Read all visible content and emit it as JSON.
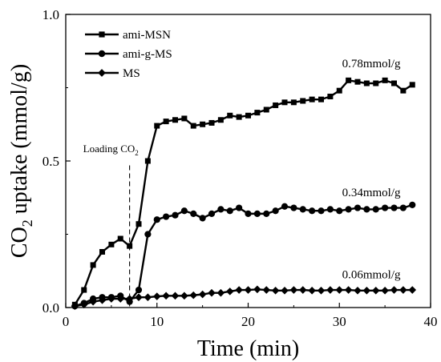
{
  "chart_data": {
    "type": "line",
    "title": "",
    "xlabel": "Time (min)",
    "ylabel_prefix": "CO",
    "ylabel_sub": "2",
    "ylabel_suffix": " uptake (mmol/g)",
    "xlim": [
      0,
      40
    ],
    "ylim": [
      0,
      1.0
    ],
    "x_ticks": [
      0,
      10,
      20,
      30,
      40
    ],
    "x_tick_labels": [
      "0",
      "10",
      "20",
      "30",
      "40"
    ],
    "y_ticks": [
      0,
      0.5,
      1.0
    ],
    "y_tick_labels": [
      "0.0",
      "0.5",
      "1.0"
    ],
    "grid": false,
    "legend_position": "top-left",
    "series": [
      {
        "name": "ami-MSN",
        "marker": "square",
        "x": [
          1,
          2,
          3,
          4,
          5,
          6,
          7,
          8,
          9,
          10,
          11,
          12,
          13,
          14,
          15,
          16,
          17,
          18,
          19,
          20,
          21,
          22,
          23,
          24,
          25,
          26,
          27,
          28,
          29,
          30,
          31,
          32,
          33,
          34,
          35,
          36,
          37,
          38
        ],
        "y": [
          0.01,
          0.06,
          0.145,
          0.19,
          0.215,
          0.235,
          0.21,
          0.285,
          0.5,
          0.62,
          0.635,
          0.64,
          0.645,
          0.62,
          0.625,
          0.63,
          0.64,
          0.655,
          0.65,
          0.655,
          0.665,
          0.675,
          0.69,
          0.7,
          0.7,
          0.705,
          0.71,
          0.71,
          0.72,
          0.74,
          0.775,
          0.77,
          0.765,
          0.765,
          0.775,
          0.765,
          0.74,
          0.76
        ]
      },
      {
        "name": "ami-g-MS",
        "marker": "circle",
        "x": [
          1,
          2,
          3,
          4,
          5,
          6,
          7,
          8,
          9,
          10,
          11,
          12,
          13,
          14,
          15,
          16,
          17,
          18,
          19,
          20,
          21,
          22,
          23,
          24,
          25,
          26,
          27,
          28,
          29,
          30,
          31,
          32,
          33,
          34,
          35,
          36,
          37,
          38
        ],
        "y": [
          0.005,
          0.015,
          0.03,
          0.035,
          0.035,
          0.04,
          0.02,
          0.06,
          0.25,
          0.3,
          0.31,
          0.315,
          0.33,
          0.32,
          0.305,
          0.32,
          0.335,
          0.33,
          0.34,
          0.32,
          0.32,
          0.32,
          0.33,
          0.345,
          0.34,
          0.335,
          0.33,
          0.33,
          0.335,
          0.33,
          0.335,
          0.34,
          0.335,
          0.335,
          0.34,
          0.34,
          0.34,
          0.35
        ]
      },
      {
        "name": "MS",
        "marker": "diamond",
        "x": [
          1,
          2,
          3,
          4,
          5,
          6,
          7,
          8,
          9,
          10,
          11,
          12,
          13,
          14,
          15,
          16,
          17,
          18,
          19,
          20,
          21,
          22,
          23,
          24,
          25,
          26,
          27,
          28,
          29,
          30,
          31,
          32,
          33,
          34,
          35,
          36,
          37,
          38
        ],
        "y": [
          0.005,
          0.01,
          0.02,
          0.025,
          0.03,
          0.03,
          0.03,
          0.035,
          0.035,
          0.038,
          0.04,
          0.04,
          0.04,
          0.042,
          0.045,
          0.05,
          0.05,
          0.055,
          0.06,
          0.06,
          0.062,
          0.06,
          0.058,
          0.058,
          0.06,
          0.06,
          0.058,
          0.058,
          0.06,
          0.06,
          0.06,
          0.058,
          0.058,
          0.058,
          0.058,
          0.06,
          0.06,
          0.06
        ]
      }
    ],
    "annotations": [
      {
        "text": "0.78mmol/g",
        "x": 33.5,
        "y": 0.82
      },
      {
        "text": "0.34mmol/g",
        "x": 33.5,
        "y": 0.38
      },
      {
        "text": "0.06mmol/g",
        "x": 33.5,
        "y": 0.1
      }
    ],
    "vline": {
      "x": 7,
      "text_prefix": "Loading CO",
      "text_sub": "2"
    }
  }
}
